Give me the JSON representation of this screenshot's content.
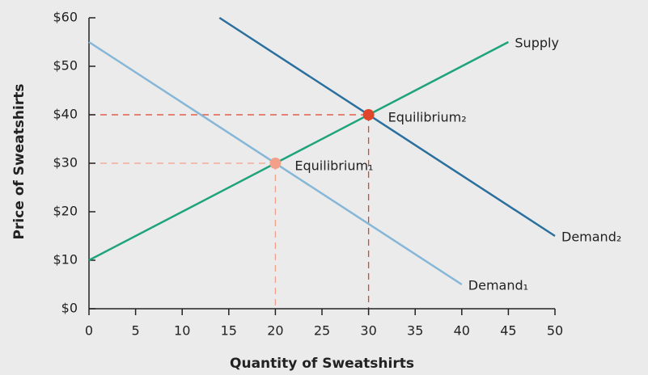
{
  "chart_data": {
    "type": "line",
    "x_label": "Quantity of Sweatshirts",
    "y_label": "Price of Sweatshirts",
    "xlim": [
      0,
      50
    ],
    "xticks": [
      0,
      5,
      10,
      15,
      20,
      25,
      30,
      35,
      40,
      45,
      50
    ],
    "ylim": [
      0,
      60
    ],
    "yticks": [
      {
        "value": 0,
        "label": "$0"
      },
      {
        "value": 10,
        "label": "$10"
      },
      {
        "value": 20,
        "label": "$20"
      },
      {
        "value": 30,
        "label": "$30"
      },
      {
        "value": 40,
        "label": "$40"
      },
      {
        "value": 50,
        "label": "$50"
      },
      {
        "value": 60,
        "label": "$60"
      }
    ],
    "series": [
      {
        "name": "Supply",
        "color": "#1ea37b",
        "x": [
          0,
          45
        ],
        "values": [
          10,
          55
        ]
      },
      {
        "name": "Demand₁",
        "color": "#86b6d8",
        "x": [
          0,
          40
        ],
        "values": [
          55,
          5
        ]
      },
      {
        "name": "Demand₂",
        "color": "#2b6f9e",
        "x": [
          14,
          50
        ],
        "values": [
          60,
          15
        ]
      }
    ],
    "annotations": [
      {
        "label": "Equilibrium₁",
        "x": 20,
        "y": 30,
        "color": "#f2a089"
      },
      {
        "label": "Equilibrium₂",
        "x": 30,
        "y": 40,
        "color": "#e0452c"
      }
    ]
  }
}
